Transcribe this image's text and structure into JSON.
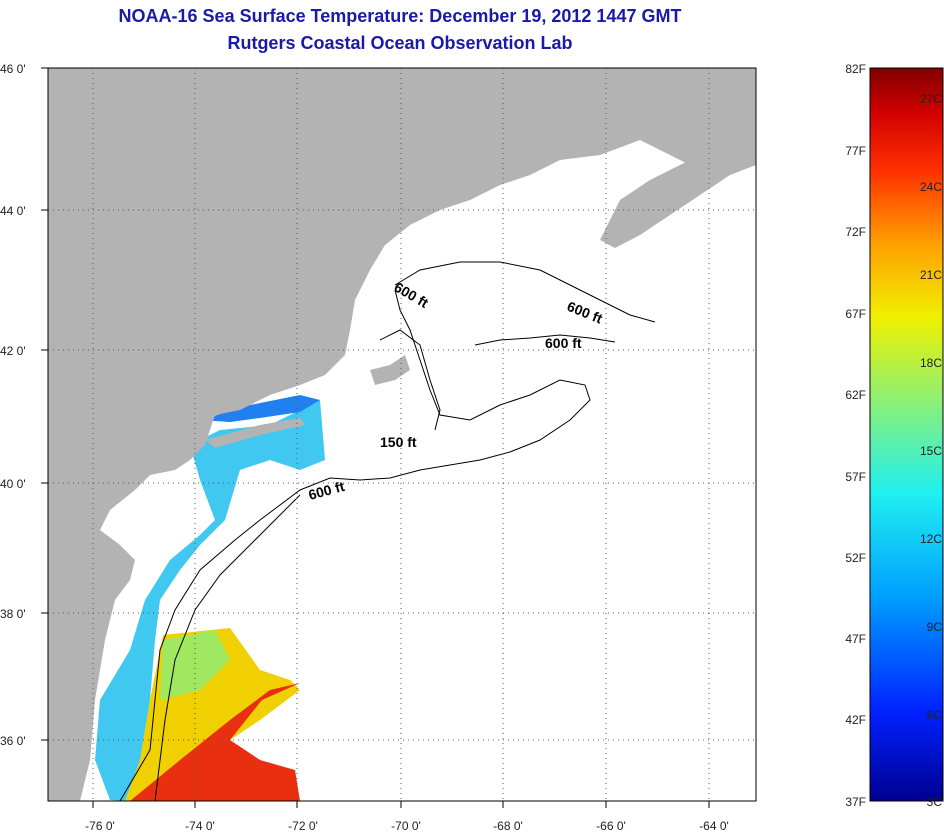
{
  "title": "NOAA-16 Sea Surface Temperature:  December 19, 2012 1447 GMT",
  "subtitle": "Rutgers Coastal Ocean Observation Lab",
  "map": {
    "lon_range": [
      -77,
      -63
    ],
    "lat_range": [
      35,
      46
    ],
    "lat_ticks": [
      {
        "value": 46,
        "label": "46 0'"
      },
      {
        "value": 44,
        "label": "44 0'"
      },
      {
        "value": 42,
        "label": "42 0'"
      },
      {
        "value": 40,
        "label": "40 0'"
      },
      {
        "value": 38,
        "label": "38 0'"
      },
      {
        "value": 36,
        "label": "36 0'"
      }
    ],
    "lon_ticks": [
      {
        "value": -76,
        "label": "-76 0'"
      },
      {
        "value": -74,
        "label": "-74 0'"
      },
      {
        "value": -72,
        "label": "-72 0'"
      },
      {
        "value": -70,
        "label": "-70 0'"
      },
      {
        "value": -68,
        "label": "-68 0'"
      },
      {
        "value": -66,
        "label": "-66 0'"
      },
      {
        "value": -64,
        "label": "-64 0'"
      }
    ],
    "grid": "dotted",
    "land_color": "#b3b3b3",
    "contour_labels": [
      "600 ft",
      "600 ft",
      "600 ft",
      "150 ft",
      "600 ft"
    ]
  },
  "colorbar": {
    "fahrenheit_labels": [
      "82F",
      "77F",
      "72F",
      "67F",
      "62F",
      "57F",
      "52F",
      "47F",
      "42F",
      "37F"
    ],
    "celsius_labels": [
      "27C",
      "24C",
      "21C",
      "18C",
      "15C",
      "12C",
      "9C",
      "6C",
      "3C"
    ],
    "colors": [
      "#000090",
      "#0020ff",
      "#00a0ff",
      "#20f0f0",
      "#90f070",
      "#f0f000",
      "#ffa000",
      "#ff3000",
      "#d00000",
      "#800000"
    ]
  }
}
